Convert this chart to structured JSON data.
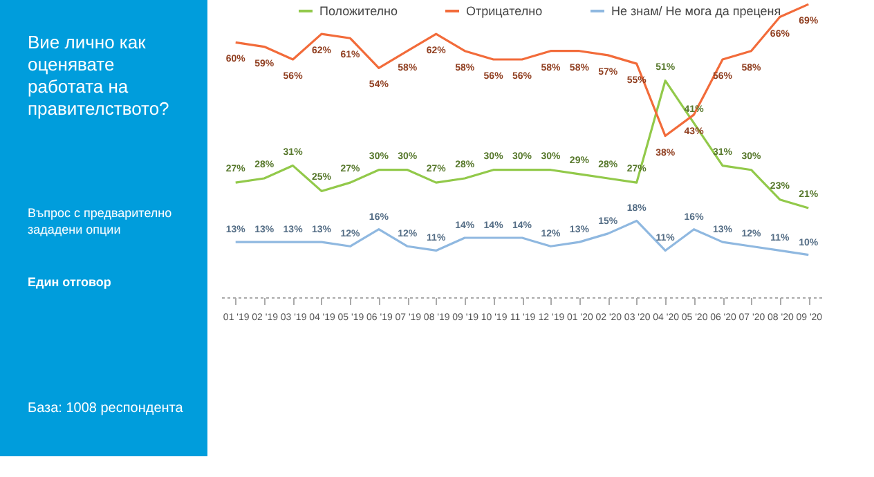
{
  "chart_data": {
    "type": "line",
    "title": "Вие лично как оценявате работата на правителството?",
    "annotations": [
      "Въпрос с предварително зададени опции",
      "Един отговор",
      "База: 1008 респондента"
    ],
    "categories": [
      "01 '19",
      "02 '19",
      "03 '19",
      "04 '19",
      "05 '19",
      "06 '19",
      "07 '19",
      "08 '19",
      "09 '19",
      "10 '19",
      "11 '19",
      "12 '19",
      "01 '20",
      "02 '20",
      "03 '20",
      "04 '20",
      "05 '20",
      "06 '20",
      "07 '20",
      "08 '20",
      "09 '20"
    ],
    "series": [
      {
        "name": "Положително",
        "color": "#92c94a",
        "values": [
          27,
          28,
          31,
          25,
          27,
          30,
          30,
          27,
          28,
          30,
          30,
          30,
          29,
          28,
          27,
          51,
          41,
          31,
          30,
          23,
          21
        ],
        "value_labels": [
          "27%",
          "28%",
          "31%",
          "25%",
          "27%",
          "30%",
          "30%",
          "27%",
          "28%",
          "30%",
          "30%",
          "30%",
          "29%",
          "28%",
          "27%",
          "51%",
          "41%",
          "31%",
          "30%",
          "23%",
          "21%"
        ]
      },
      {
        "name": "Отрицателно",
        "color": "#f26b3a",
        "values": [
          60,
          59,
          56,
          62,
          61,
          54,
          58,
          62,
          58,
          56,
          56,
          58,
          58,
          57,
          55,
          38,
          43,
          56,
          58,
          66,
          69
        ],
        "value_labels": [
          "60%",
          "59%",
          "56%",
          "62%",
          "61%",
          "54%",
          "58%",
          "62%",
          "58%",
          "56%",
          "56%",
          "58%",
          "58%",
          "57%",
          "55%",
          "38%",
          "43%",
          "56%",
          "58%",
          "66%",
          "69%"
        ]
      },
      {
        "name": "Не знам/ Не мога да преценя",
        "color": "#8fb8e0",
        "values": [
          13,
          13,
          13,
          13,
          12,
          16,
          12,
          11,
          14,
          14,
          14,
          12,
          13,
          15,
          18,
          11,
          16,
          13,
          12,
          11,
          10
        ],
        "value_labels": [
          "13%",
          "13%",
          "13%",
          "13%",
          "12%",
          "16%",
          "12%",
          "11%",
          "14%",
          "14%",
          "14%",
          "12%",
          "13%",
          "15%",
          "18%",
          "11%",
          "16%",
          "13%",
          "12%",
          "11%",
          "10%"
        ]
      }
    ],
    "legend": "top",
    "grid": false,
    "marker": "none",
    "line_style": "solid"
  }
}
